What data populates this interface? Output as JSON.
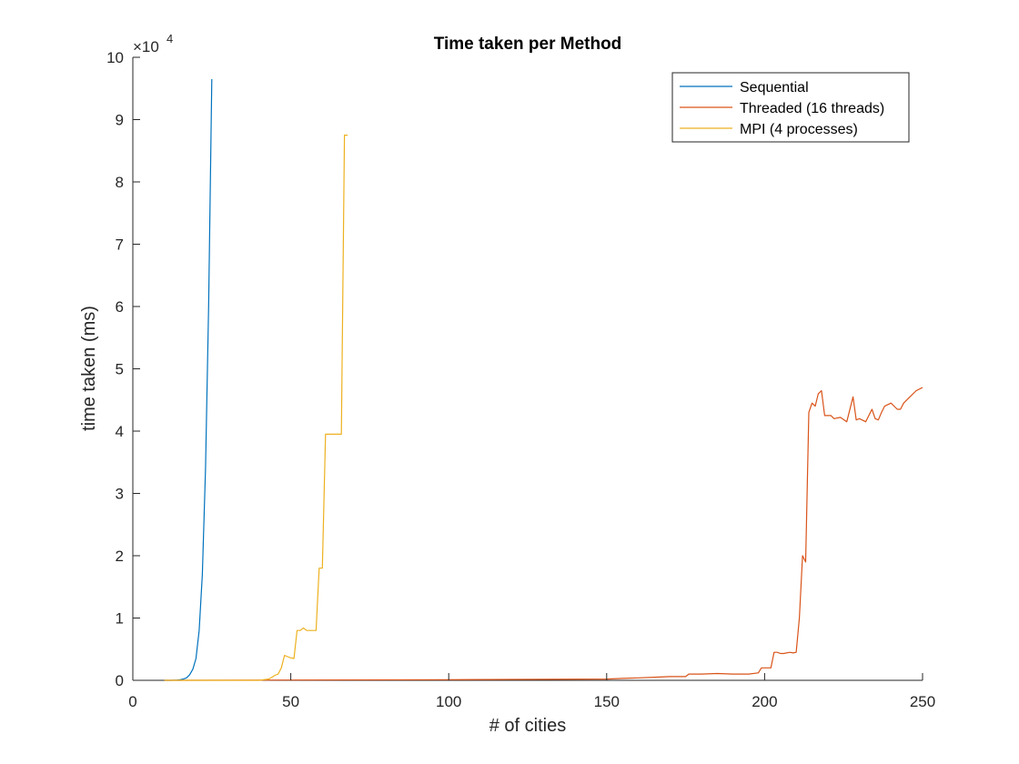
{
  "chart_data": {
    "type": "line",
    "title": "Time taken per Method",
    "xlabel": "# of cities",
    "ylabel": "time taken (ms)",
    "xlim": [
      0,
      250
    ],
    "ylim": [
      0,
      100000
    ],
    "x_ticks": [
      0,
      50,
      100,
      150,
      200,
      250
    ],
    "y_ticks": [
      0,
      10000,
      20000,
      30000,
      40000,
      50000,
      60000,
      70000,
      80000,
      90000,
      100000
    ],
    "y_tick_labels": [
      "0",
      "1",
      "2",
      "3",
      "4",
      "5",
      "6",
      "7",
      "8",
      "9",
      "10"
    ],
    "y_exponent_base": "×10",
    "y_exponent_power": "4",
    "grid": false,
    "legend_position": "top-right",
    "series": [
      {
        "name": "Sequential",
        "color": "#0072bd",
        "x": [
          10,
          12,
          14,
          15,
          16,
          17,
          18,
          19,
          20,
          21,
          22,
          23,
          24,
          25
        ],
        "y": [
          0,
          0,
          50,
          100,
          200,
          400,
          900,
          1800,
          3500,
          8000,
          17000,
          34000,
          60000,
          96500
        ]
      },
      {
        "name": "Threaded (16 threads)",
        "color": "#d95319",
        "x": [
          10,
          50,
          100,
          150,
          155,
          160,
          165,
          170,
          175,
          176,
          180,
          185,
          190,
          195,
          198,
          199,
          200,
          202,
          203,
          204,
          205,
          206,
          208,
          209,
          210,
          211,
          212,
          213,
          214,
          215,
          216,
          217,
          218,
          219,
          220,
          221,
          222,
          224,
          226,
          228,
          229,
          230,
          232,
          234,
          235,
          236,
          237,
          238,
          240,
          242,
          243,
          244,
          246,
          248,
          250
        ],
        "y": [
          0,
          50,
          100,
          200,
          300,
          400,
          500,
          600,
          600,
          1000,
          1000,
          1100,
          1000,
          1000,
          1200,
          2000,
          2000,
          2000,
          4500,
          4500,
          4300,
          4300,
          4500,
          4400,
          4500,
          10000,
          20000,
          19000,
          43000,
          44500,
          44000,
          46000,
          46500,
          42500,
          42500,
          42500,
          42000,
          42200,
          41500,
          45500,
          41800,
          42000,
          41500,
          43500,
          42000,
          41800,
          43000,
          44000,
          44500,
          43500,
          43500,
          44500,
          45500,
          46500,
          47000
        ]
      },
      {
        "name": "MPI (4 processes)",
        "color": "#edb120",
        "x": [
          10,
          40,
          43,
          44,
          45,
          46,
          47,
          48,
          49,
          50,
          51,
          52,
          53,
          54,
          55,
          56,
          57,
          58,
          59,
          60,
          61,
          62,
          63,
          64,
          65,
          66,
          67,
          68
        ],
        "y": [
          0,
          0,
          200,
          500,
          800,
          1000,
          2000,
          4000,
          3800,
          3600,
          3500,
          8000,
          8000,
          8400,
          8000,
          8000,
          8000,
          8000,
          18000,
          18000,
          39500,
          39500,
          39500,
          39500,
          39500,
          39500,
          87500,
          87500
        ]
      }
    ]
  }
}
